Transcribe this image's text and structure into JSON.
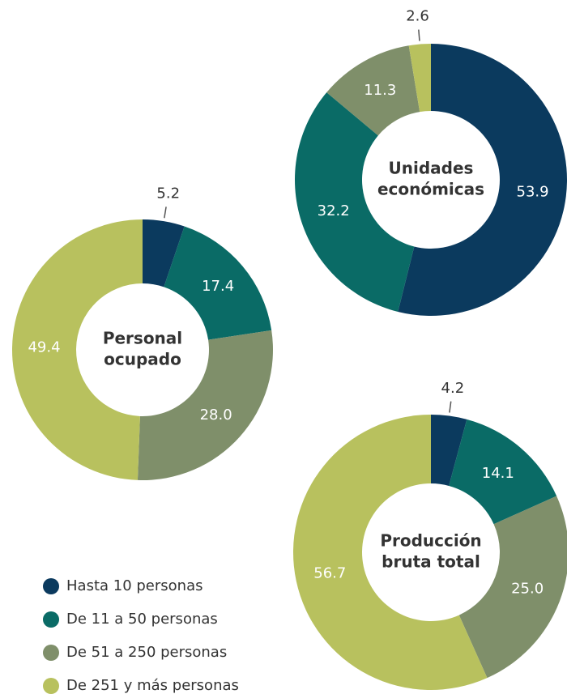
{
  "chart_data": [
    {
      "type": "donut",
      "title": [
        "Unidades",
        "económicas"
      ],
      "values": [
        53.9,
        32.2,
        11.3,
        2.6
      ],
      "value_labels": [
        "53.9",
        "32.2",
        "11.3",
        "2.6"
      ]
    },
    {
      "type": "donut",
      "title": [
        "Personal",
        "ocupado"
      ],
      "values": [
        5.2,
        17.4,
        28.0,
        49.4
      ],
      "value_labels": [
        "5.2",
        "17.4",
        "28.0",
        "49.4"
      ]
    },
    {
      "type": "donut",
      "title": [
        "Producción",
        "bruta total"
      ],
      "values": [
        4.2,
        14.1,
        25.0,
        56.7
      ],
      "value_labels": [
        "4.2",
        "14.1",
        "25.0",
        "56.7"
      ]
    }
  ],
  "legend": [
    {
      "name": "Hasta 10 personas",
      "color": "#0b3a5e"
    },
    {
      "name": "De 11 a 50 personas",
      "color": "#0a6b66"
    },
    {
      "name": "De 51 a 250 personas",
      "color": "#7f8f6a"
    },
    {
      "name": "De 251 y más personas",
      "color": "#b8c15e"
    }
  ]
}
